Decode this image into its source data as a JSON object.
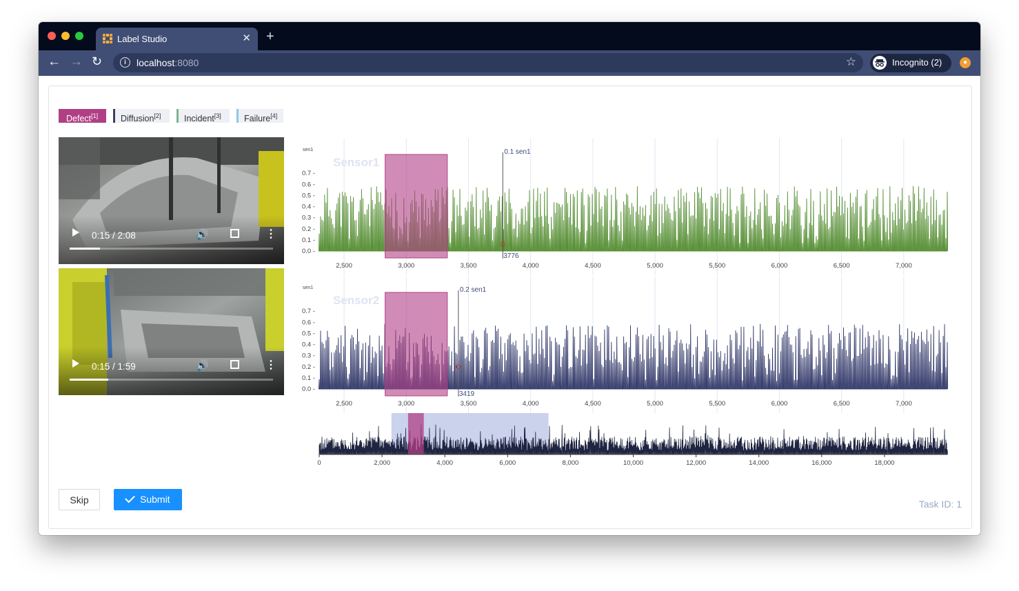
{
  "browser": {
    "tab_title": "Label Studio",
    "tab_close": "✕",
    "new_tab": "+",
    "url_host": "localhost",
    "url_port": ":8080",
    "incognito_label": "Incognito (2)",
    "colors": {
      "chrome_dark": "#030b1c",
      "chrome": "#404e75"
    }
  },
  "labels": [
    {
      "text": "Defect",
      "hotkey": "[1]",
      "color": "#b03f85",
      "selected": true
    },
    {
      "text": "Diffusion",
      "hotkey": "[2]",
      "color": "#3b3f5e",
      "selected": false
    },
    {
      "text": "Incident",
      "hotkey": "[3]",
      "color": "#7fb290",
      "selected": false
    },
    {
      "text": "Failure",
      "hotkey": "[4]",
      "color": "#8cc9e6",
      "selected": false
    }
  ],
  "videos": [
    {
      "time": "0:15 / 2:08",
      "progress": 0.15
    },
    {
      "time": "0:15 / 1:59",
      "progress": 0.19
    }
  ],
  "chart_data": [
    {
      "type": "line",
      "title": "Sensor1",
      "ylabel": "sen1",
      "x_ticks": [
        "2,500",
        "3,000",
        "3,500",
        "4,000",
        "4,500",
        "5,000",
        "5,500",
        "6,000",
        "6,500",
        "7,000"
      ],
      "y_ticks": [
        "0.0",
        "0.1",
        "0.2",
        "0.3",
        "0.4",
        "0.5",
        "0.6",
        "0.7"
      ],
      "xlim": [
        2300,
        7350
      ],
      "ylim": [
        0,
        0.8
      ],
      "series_color": "#4f8a2b",
      "region": {
        "label": "Defect",
        "x": [
          2830,
          3330
        ],
        "color": "#b03f85"
      },
      "cursor": {
        "x": 3776,
        "label": "0.1 sen1",
        "x_label": "3776"
      }
    },
    {
      "type": "line",
      "title": "Sensor2",
      "ylabel": "sen1",
      "x_ticks": [
        "2,500",
        "3,000",
        "3,500",
        "4,000",
        "4,500",
        "5,000",
        "5,500",
        "6,000",
        "6,500",
        "7,000"
      ],
      "y_ticks": [
        "0.0",
        "0.1",
        "0.2",
        "0.3",
        "0.4",
        "0.5",
        "0.6",
        "0.7"
      ],
      "xlim": [
        2300,
        7350
      ],
      "ylim": [
        0,
        0.8
      ],
      "series_color": "#2d3466",
      "region": {
        "label": "Defect",
        "x": [
          2830,
          3330
        ],
        "color": "#b03f85"
      },
      "cursor": {
        "x": 3419,
        "label": "0.2 sen1",
        "x_label": "3419"
      }
    },
    {
      "type": "line",
      "title": "",
      "x_ticks": [
        "0",
        "2,000",
        "4,000",
        "6,000",
        "8,000",
        "10,000",
        "12,000",
        "14,000",
        "16,000",
        "18,000"
      ],
      "xlim": [
        0,
        20000
      ],
      "brush": [
        2300,
        7300
      ],
      "region": {
        "x": [
          2830,
          3330
        ],
        "color": "#b03f85"
      }
    }
  ],
  "footer": {
    "skip_label": "Skip",
    "submit_label": "Submit",
    "task_id": "Task ID: 1"
  }
}
